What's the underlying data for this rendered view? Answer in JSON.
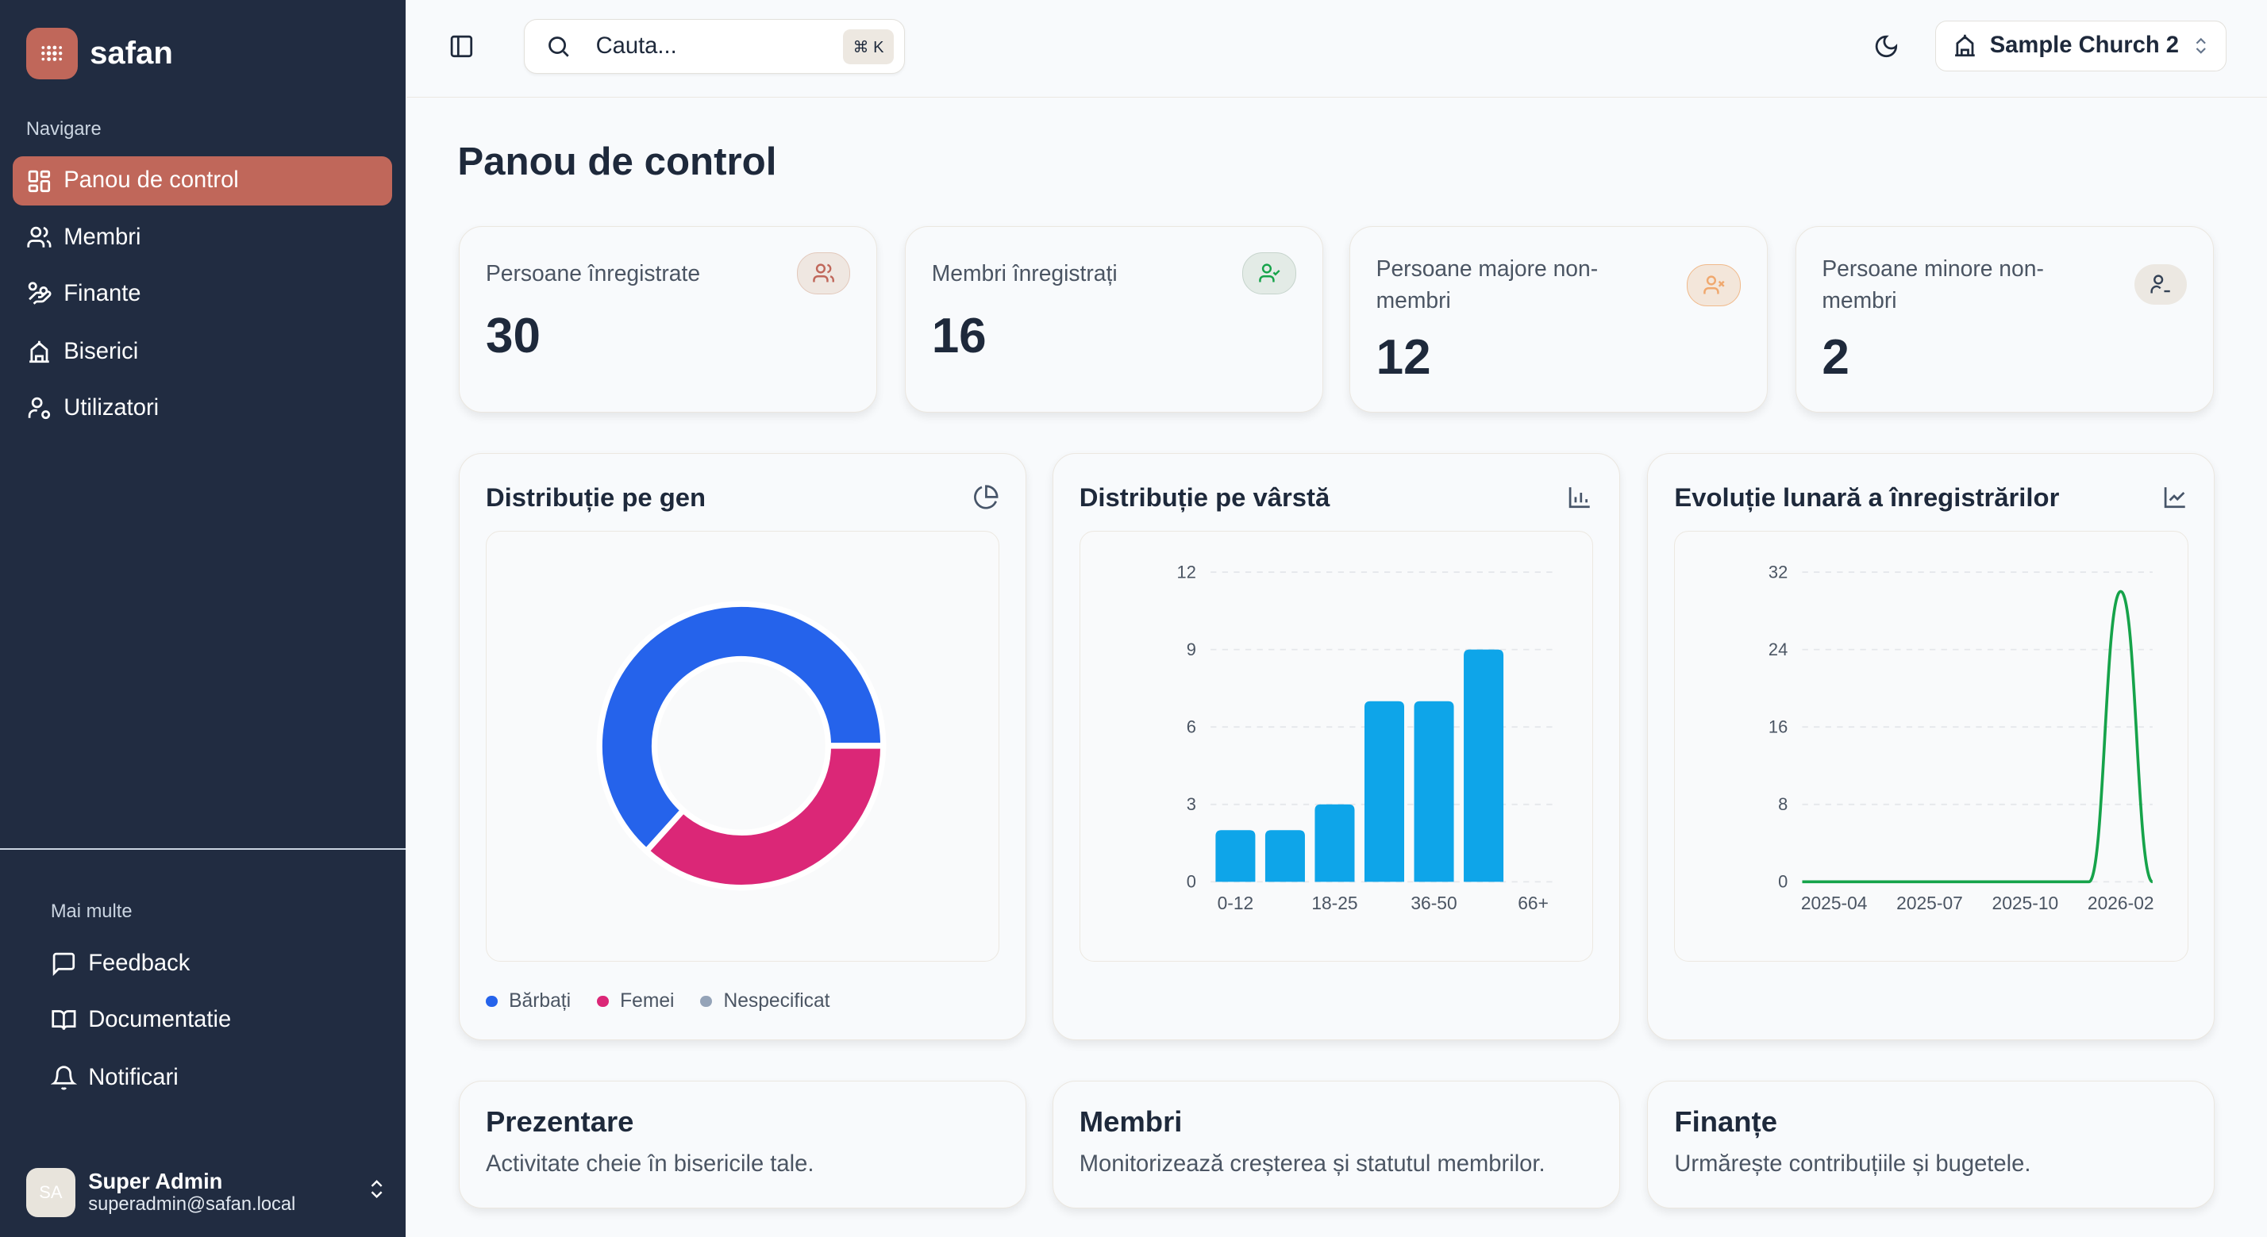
{
  "brand": "safan",
  "sidebar": {
    "nav_label": "Navigare",
    "items": [
      {
        "label": "Panou de control",
        "icon": "dashboard-icon",
        "active": true
      },
      {
        "label": "Membri",
        "icon": "users-icon"
      },
      {
        "label": "Finante",
        "icon": "hand-coins-icon"
      },
      {
        "label": "Biserici",
        "icon": "church-icon"
      },
      {
        "label": "Utilizatori",
        "icon": "user-cog-icon"
      }
    ],
    "more_label": "Mai multe",
    "more_items": [
      {
        "label": "Feedback",
        "icon": "message-square-icon"
      },
      {
        "label": "Documentatie",
        "icon": "book-open-icon"
      },
      {
        "label": "Notificari",
        "icon": "bell-icon"
      }
    ],
    "user": {
      "initials": "SA",
      "name": "Super Admin",
      "email": "superadmin@safan.local"
    }
  },
  "header": {
    "search_placeholder": "Cauta...",
    "shortcut": "⌘ K",
    "church": "Sample Church 2"
  },
  "page_title": "Panou de control",
  "stats": [
    {
      "label": "Persoane înregistrate",
      "value": "30",
      "icon": "users-icon",
      "color": "#c0675a",
      "bg": "#efe7e1"
    },
    {
      "label": "Membri înregistrați",
      "value": "16",
      "icon": "user-check-icon",
      "color": "#16a34a",
      "bg": "#e3ebe6"
    },
    {
      "label": "Persoane majore non-membri",
      "value": "12",
      "icon": "user-x-icon",
      "color": "#f0a86e",
      "bg": "#f3e6da"
    },
    {
      "label": "Persoane minore non-membri",
      "value": "2",
      "icon": "user-minus-icon",
      "color": "#334155",
      "bg": "#ece8e2"
    }
  ],
  "charts": {
    "gender_title": "Distribuție pe gen",
    "age_title": "Distribuție pe vârstă",
    "monthly_title": "Evoluție lunară a înregistrărilor"
  },
  "chart_data": [
    {
      "type": "pie",
      "variant": "donut",
      "title": "Distribuție pe gen",
      "legend_position": "bottom",
      "slices": [
        {
          "name": "Bărbați",
          "value": 19,
          "color": "#2563eb"
        },
        {
          "name": "Femei",
          "value": 11,
          "color": "#db2777"
        },
        {
          "name": "Nespecificat",
          "value": 0,
          "color": "#94a3b8"
        }
      ]
    },
    {
      "type": "bar",
      "title": "Distribuție pe vârstă",
      "categories": [
        "0-12",
        "",
        "18-25",
        "",
        "36-50",
        "",
        "66+"
      ],
      "values": [
        2,
        2,
        3,
        7,
        7,
        9,
        0
      ],
      "ylim": [
        0,
        12
      ],
      "yticks": [
        0,
        3,
        6,
        9,
        12
      ],
      "grid": true,
      "color": "#0ea5e9"
    },
    {
      "type": "line",
      "title": "Evoluție lunară a înregistrărilor",
      "x": [
        "",
        "2025-04",
        "",
        "",
        "2025-07",
        "",
        "",
        "2025-10",
        "",
        "",
        "2026-02",
        ""
      ],
      "values": [
        0,
        0,
        0,
        0,
        0,
        0,
        0,
        0,
        0,
        0,
        30,
        0
      ],
      "ylim": [
        0,
        32
      ],
      "yticks": [
        0,
        8,
        16,
        24,
        32
      ],
      "grid": true,
      "color": "#16a34a",
      "curve": "smooth"
    }
  ],
  "info_cards": [
    {
      "title": "Prezentare",
      "subtitle": "Activitate cheie în bisericile tale."
    },
    {
      "title": "Membri",
      "subtitle": "Monitorizează creșterea și statutul membrilor."
    },
    {
      "title": "Finanțe",
      "subtitle": "Urmărește contribuțiile și bugetele."
    }
  ]
}
